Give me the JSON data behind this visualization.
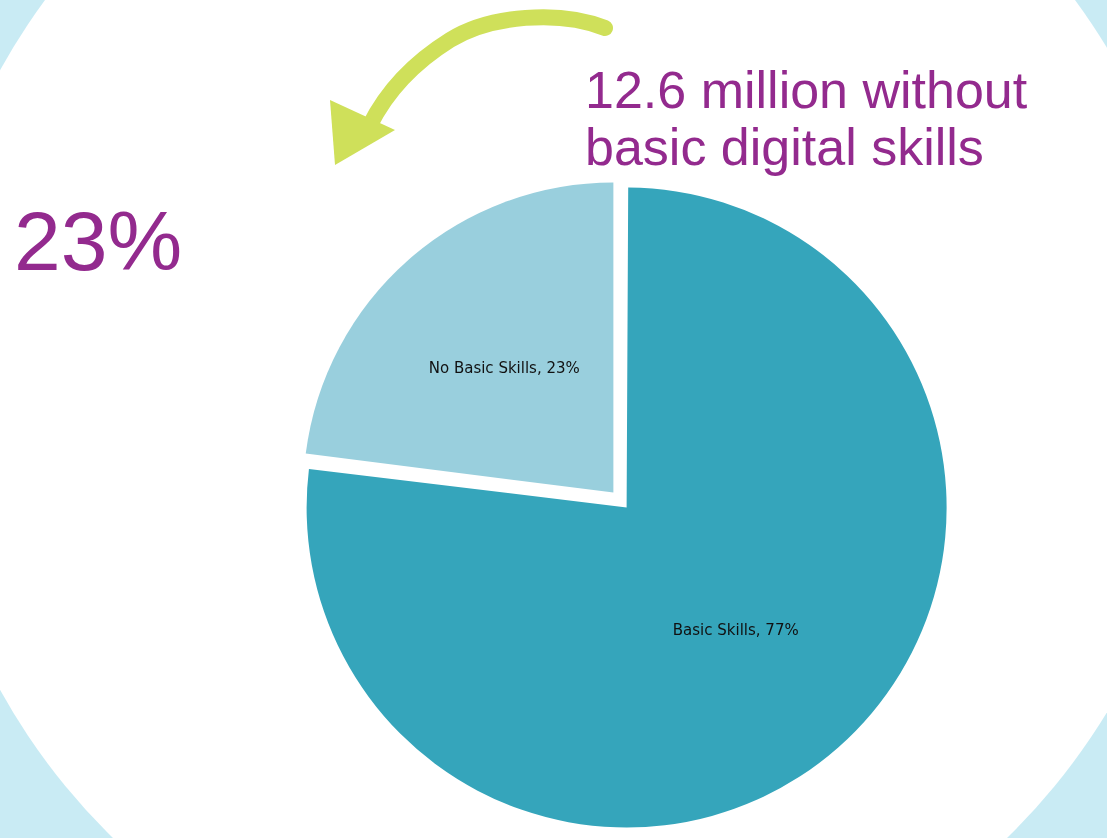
{
  "chart_data": {
    "type": "pie",
    "categories": [
      "Basic Skills",
      "No Basic Skills"
    ],
    "values": [
      77,
      23
    ],
    "colors": [
      "#35a5bb",
      "#99cfdd"
    ],
    "value_labels": [
      "77%",
      "23%"
    ],
    "annotations": [
      "23%",
      "12.6 million without basic digital skills"
    ],
    "legend": false
  }
}
